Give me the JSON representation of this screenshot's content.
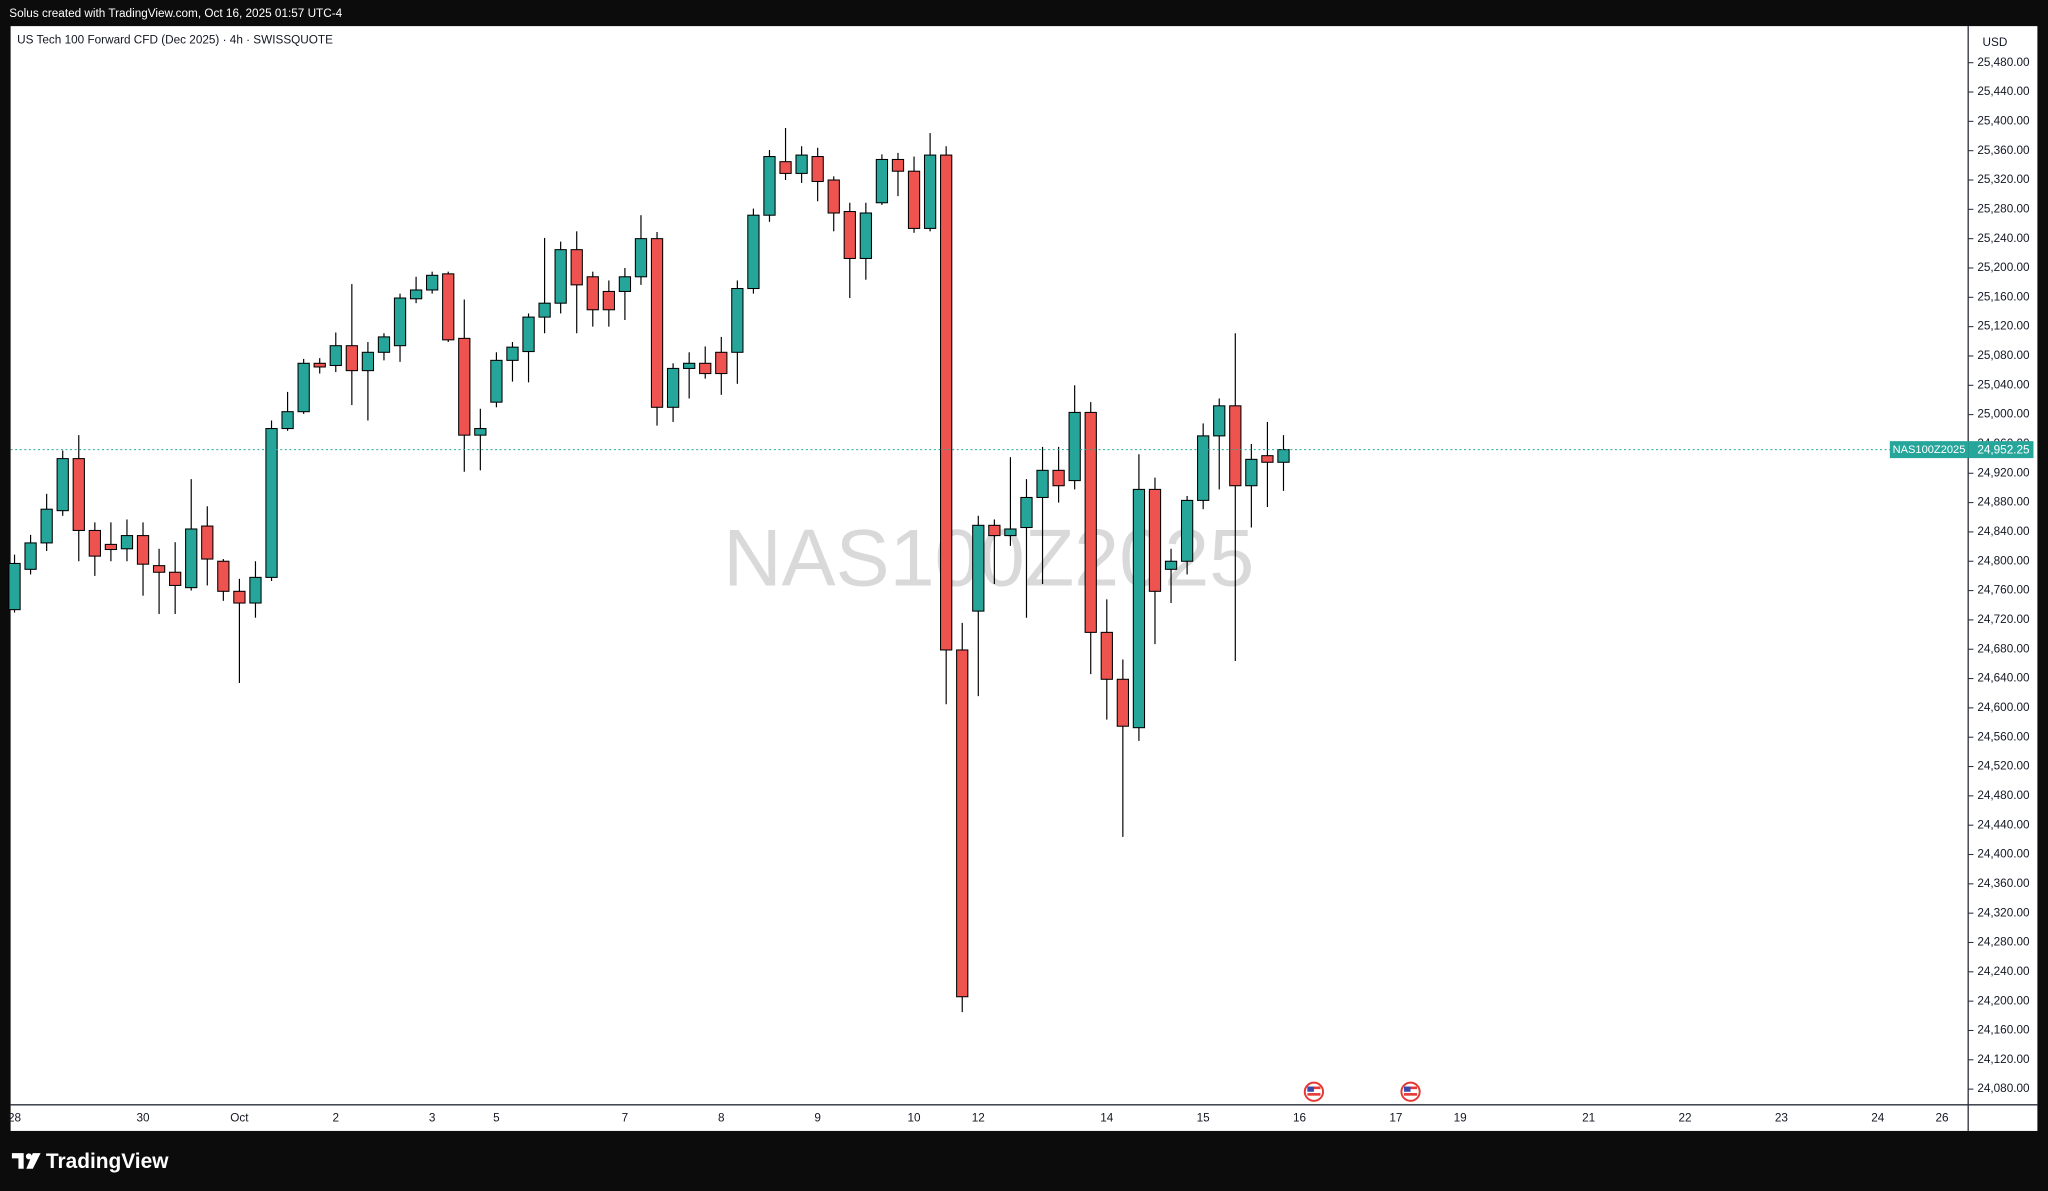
{
  "header": {
    "text": "Solus created with TradingView.com, Oct 16, 2025 01:57 UTC-4"
  },
  "chart_data": {
    "type": "candlestick",
    "title": "US Tech 100 Forward CFD (Dec 2025) · 4h · SWISSQUOTE",
    "currency": "USD",
    "symbol": "NAS100Z2025",
    "last_price": {
      "value": 24952.25,
      "label": "24,952.25"
    },
    "categories": [
      "28",
      null,
      null,
      null,
      null,
      null,
      null,
      null,
      "30",
      null,
      null,
      null,
      null,
      null,
      "Oct",
      null,
      null,
      null,
      null,
      null,
      "2",
      null,
      null,
      null,
      null,
      null,
      "3",
      null,
      null,
      null,
      "5",
      null,
      null,
      null,
      null,
      null,
      null,
      null,
      "7",
      null,
      null,
      null,
      null,
      null,
      "8",
      null,
      null,
      null,
      null,
      null,
      "9",
      null,
      null,
      null,
      null,
      null,
      "10",
      null,
      null,
      null,
      "12",
      null,
      null,
      null,
      null,
      null,
      null,
      null,
      "14",
      null,
      null,
      null,
      null,
      null,
      "15",
      null,
      null,
      null,
      null,
      null,
      "16",
      null,
      null,
      null,
      null,
      null,
      "17",
      null,
      null,
      null,
      "19",
      null,
      null,
      null,
      null,
      null,
      null,
      null,
      "21",
      null,
      null,
      null,
      null,
      null,
      "22",
      null,
      null,
      null,
      null,
      null,
      "23",
      null,
      null,
      null,
      null,
      null,
      "24",
      null,
      null,
      null,
      "26",
      null
    ],
    "open": [
      24734,
      24789,
      24825,
      24869,
      24940,
      24842,
      24823,
      24817,
      24835,
      24794,
      24785,
      24764,
      24848,
      24800,
      24759,
      24743,
      24778,
      24981,
      25004,
      25070,
      25067,
      25094,
      25060,
      25085,
      25094,
      25158,
      25170,
      25192,
      25104,
      24972,
      25017,
      25074,
      25086,
      25133,
      25152,
      25225,
      25188,
      25168,
      25168,
      25188,
      25240,
      25010,
      25063,
      25070,
      25085,
      25085,
      25172,
      25272,
      25345,
      25329,
      25352,
      25320,
      25277,
      25213,
      25289,
      25348,
      25332,
      25254,
      25354,
      24679,
      24732,
      24849,
      24835,
      24846,
      24887,
      24924,
      24910,
      25003,
      24703,
      24639,
      24573,
      24898,
      24789,
      24800,
      24883,
      24971,
      25012,
      24903,
      24944,
      24935,
      null,
      null,
      null,
      null,
      null,
      null,
      null,
      null,
      null,
      null,
      null,
      null,
      null,
      null,
      null,
      null,
      null,
      null,
      null,
      null,
      null,
      null,
      null,
      null,
      null,
      null,
      null,
      null,
      null,
      null,
      null,
      null,
      null,
      null,
      null,
      null,
      null,
      null,
      null,
      null,
      null,
      null
    ],
    "high": [
      24809,
      24836,
      24892,
      24951,
      24972,
      24853,
      24853,
      24857,
      24853,
      24817,
      24826,
      24912,
      24875,
      24803,
      24776,
      24800,
      24992,
      25031,
      25076,
      25077,
      25112,
      25178,
      25099,
      25111,
      25165,
      25188,
      25195,
      25195,
      25157,
      25008,
      25085,
      25099,
      25138,
      25241,
      25236,
      25250,
      25195,
      25183,
      25200,
      25272,
      25249,
      25070,
      25085,
      25093,
      25106,
      25183,
      25281,
      25361,
      25391,
      25366,
      25364,
      25325,
      25289,
      25289,
      25355,
      25357,
      25352,
      25384,
      25366,
      24716,
      24862,
      24857,
      24942,
      24912,
      24956,
      24956,
      25040,
      25017,
      24748,
      24666,
      24946,
      24914,
      24817,
      24889,
      24988,
      25022,
      25111,
      24960,
      24990,
      24972,
      null,
      null,
      null,
      null,
      null,
      null,
      null,
      null,
      null,
      null,
      null,
      null,
      null,
      null,
      null,
      null,
      null,
      null,
      null,
      null,
      null,
      null,
      null,
      null,
      null,
      null,
      null,
      null,
      null,
      null,
      null,
      null,
      null,
      null,
      null,
      null,
      null,
      null,
      null,
      null,
      null,
      null
    ],
    "low": [
      24730,
      24782,
      24814,
      24862,
      24800,
      24780,
      24800,
      24800,
      24753,
      24728,
      24728,
      24760,
      24767,
      24746,
      24634,
      24723,
      24773,
      24978,
      25001,
      25056,
      25058,
      25013,
      24992,
      25074,
      25072,
      25152,
      25165,
      25099,
      24922,
      24924,
      25010,
      25045,
      25044,
      25111,
      25138,
      25111,
      25120,
      25120,
      25129,
      25177,
      24985,
      24990,
      25022,
      25049,
      25027,
      25042,
      25165,
      25263,
      25320,
      25316,
      25291,
      25250,
      25159,
      25184,
      25286,
      25298,
      25248,
      25250,
      24605,
      24185,
      24616,
      24769,
      24821,
      24723,
      24769,
      24880,
      24898,
      24646,
      24584,
      24424,
      24555,
      24687,
      24743,
      24782,
      24871,
      24898,
      24664,
      24846,
      24874,
      24896,
      null,
      null,
      null,
      null,
      null,
      null,
      null,
      null,
      null,
      null,
      null,
      null,
      null,
      null,
      null,
      null,
      null,
      null,
      null,
      null,
      null,
      null,
      null,
      null,
      null,
      null,
      null,
      null,
      null,
      null,
      null,
      null,
      null,
      null,
      null,
      null,
      null,
      null,
      null,
      null,
      null,
      null
    ],
    "close": [
      24797,
      24825,
      24871,
      24940,
      24842,
      24807,
      24816,
      24835,
      24796,
      24785,
      24767,
      24844,
      24803,
      24759,
      24743,
      24778,
      24981,
      25004,
      25070,
      25065,
      25094,
      25060,
      25085,
      25106,
      25159,
      25170,
      25190,
      25102,
      24972,
      24981,
      25074,
      25092,
      25133,
      25152,
      25225,
      25177,
      25143,
      25143,
      25188,
      25240,
      25010,
      25063,
      25070,
      25056,
      25056,
      25172,
      25272,
      25352,
      25329,
      25354,
      25318,
      25275,
      25213,
      25275,
      25348,
      25332,
      25254,
      25354,
      24679,
      24206,
      24849,
      24835,
      24844,
      24887,
      24924,
      24903,
      25003,
      24703,
      24639,
      24575,
      24898,
      24759,
      24800,
      24883,
      24971,
      25012,
      24903,
      24939,
      24935,
      24952.25,
      null,
      null,
      null,
      null,
      null,
      null,
      null,
      null,
      null,
      null,
      null,
      null,
      null,
      null,
      null,
      null,
      null,
      null,
      null,
      null,
      null,
      null,
      null,
      null,
      null,
      null,
      null,
      null,
      null,
      null,
      null,
      null,
      null,
      null,
      null,
      null,
      null,
      null,
      null,
      null,
      null,
      null
    ],
    "up_color": "#26a69a",
    "down_color": "#ef5350",
    "ylim": [
      24058.6,
      25529.9
    ],
    "yticks": [
      {
        "value": 24080,
        "label": "24,080.00"
      },
      {
        "value": 24120,
        "label": "24,120.00"
      },
      {
        "value": 24160,
        "label": "24,160.00"
      },
      {
        "value": 24200,
        "label": "24,200.00"
      },
      {
        "value": 24240,
        "label": "24,240.00"
      },
      {
        "value": 24280,
        "label": "24,280.00"
      },
      {
        "value": 24320,
        "label": "24,320.00"
      },
      {
        "value": 24360,
        "label": "24,360.00"
      },
      {
        "value": 24400,
        "label": "24,400.00"
      },
      {
        "value": 24440,
        "label": "24,440.00"
      },
      {
        "value": 24480,
        "label": "24,480.00"
      },
      {
        "value": 24520,
        "label": "24,520.00"
      },
      {
        "value": 24560,
        "label": "24,560.00"
      },
      {
        "value": 24600,
        "label": "24,600.00"
      },
      {
        "value": 24640,
        "label": "24,640.00"
      },
      {
        "value": 24680,
        "label": "24,680.00"
      },
      {
        "value": 24720,
        "label": "24,720.00"
      },
      {
        "value": 24760,
        "label": "24,760.00"
      },
      {
        "value": 24800,
        "label": "24,800.00"
      },
      {
        "value": 24840,
        "label": "24,840.00"
      },
      {
        "value": 24880,
        "label": "24,880.00"
      },
      {
        "value": 24920,
        "label": "24,920.00"
      },
      {
        "value": 24960,
        "label": "24,960.00"
      },
      {
        "value": 25000,
        "label": "25,000.00"
      },
      {
        "value": 25040,
        "label": "25,040.00"
      },
      {
        "value": 25080,
        "label": "25,080.00"
      },
      {
        "value": 25120,
        "label": "25,120.00"
      },
      {
        "value": 25160,
        "label": "25,160.00"
      },
      {
        "value": 25200,
        "label": "25,200.00"
      },
      {
        "value": 25240,
        "label": "25,240.00"
      },
      {
        "value": 25280,
        "label": "25,280.00"
      },
      {
        "value": 25320,
        "label": "25,320.00"
      },
      {
        "value": 25360,
        "label": "25,360.00"
      },
      {
        "value": 25400,
        "label": "25,400.00"
      },
      {
        "value": 25440,
        "label": "25,440.00"
      },
      {
        "value": 25480,
        "label": "25,480.00"
      }
    ]
  },
  "footer": {
    "brand": "TradingView"
  }
}
